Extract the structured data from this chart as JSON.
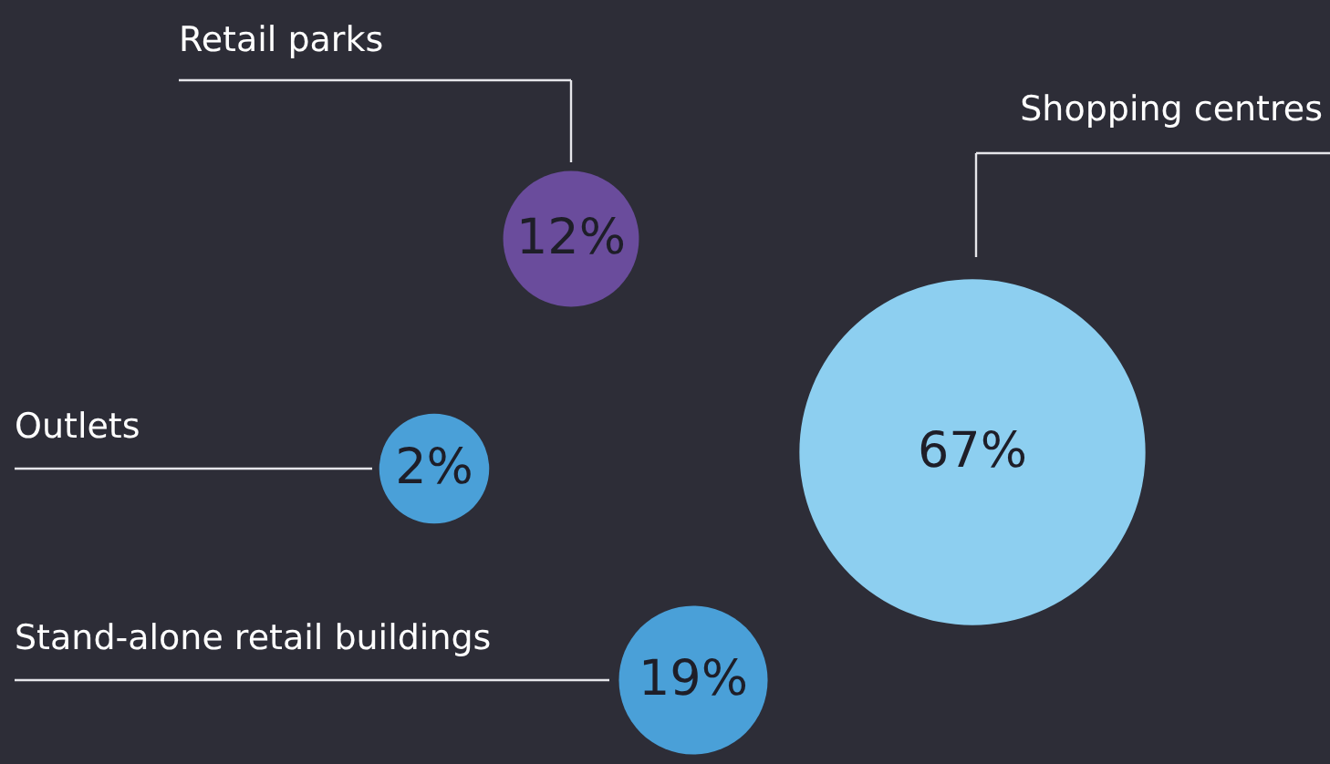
{
  "chart_data": {
    "type": "other",
    "categories": [
      "Retail parks",
      "Shopping centres",
      "Outlets",
      "Stand-alone retail buildings"
    ],
    "values": [
      12,
      67,
      2,
      19
    ],
    "value_labels": [
      "12%",
      "67%",
      "2%",
      "19%"
    ],
    "colors": [
      "#6a4c9c",
      "#8dcff0",
      "#4aa0d8",
      "#4aa0d8"
    ]
  }
}
